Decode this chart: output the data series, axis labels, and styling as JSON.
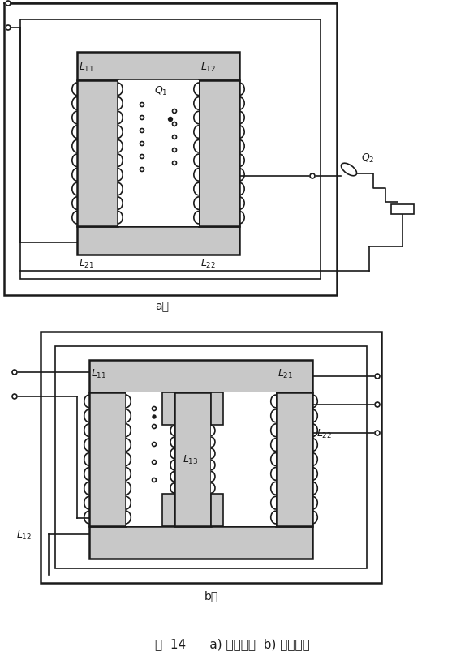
{
  "fig_width": 5.73,
  "fig_height": 8.2,
  "dpi": 100,
  "bg_color": "#ffffff",
  "line_color": "#1a1a1a",
  "caption": "图  14      a) 二心柱式  b) 三心柱式"
}
